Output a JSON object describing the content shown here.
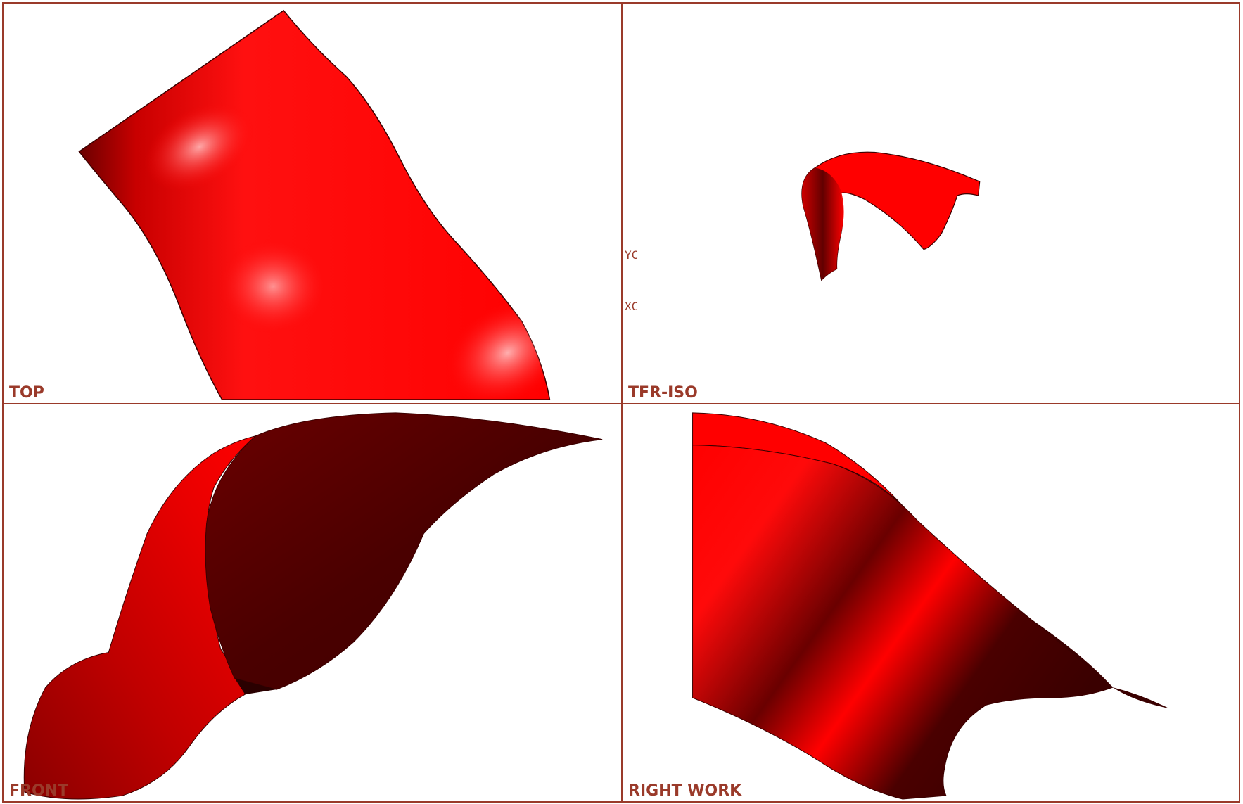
{
  "window": {
    "layout": "four-viewport",
    "border_color": "#9a3a2a",
    "label_color": "#9a3a2a",
    "background_color": "#ffffff"
  },
  "surface": {
    "base_color": "#ff0000",
    "highlight_color": "#ff9a9a",
    "shadow_color": "#4a0000"
  },
  "viewports": {
    "top": {
      "label": "TOP"
    },
    "iso": {
      "label": "TFR-ISO"
    },
    "front": {
      "label": "FRONT"
    },
    "right": {
      "label": "RIGHT WORK"
    }
  },
  "triad": {
    "yc": "YC",
    "xc": "XC"
  }
}
